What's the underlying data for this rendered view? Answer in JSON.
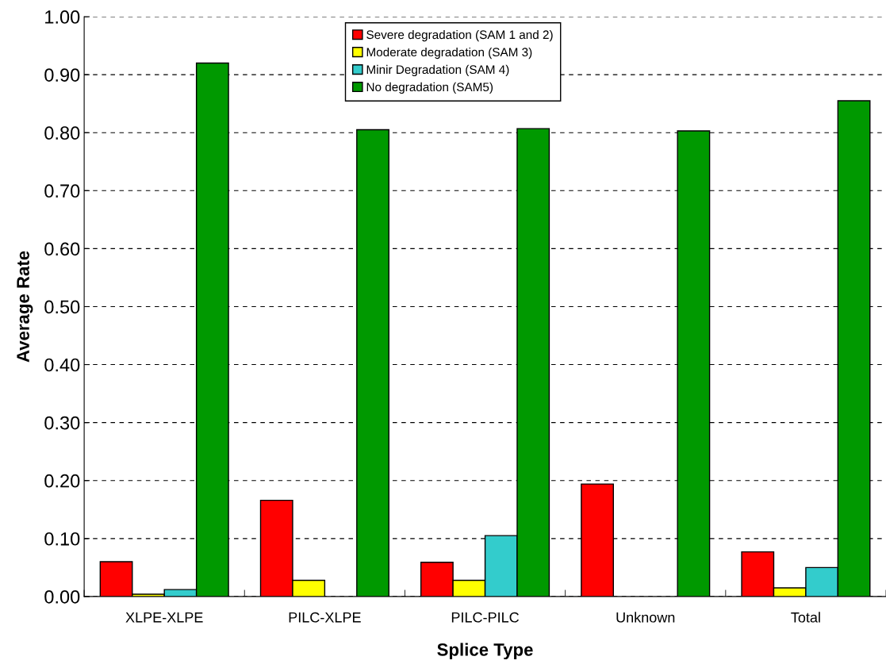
{
  "chart_data": {
    "type": "bar",
    "xlabel": "Splice Type",
    "ylabel": "Average Rate",
    "categories": [
      "XLPE-XLPE",
      "PILC-XLPE",
      "PILC-PILC",
      "Unknown",
      "Total"
    ],
    "series": [
      {
        "name": "Severe degradation (SAM 1 and 2)",
        "color": "#ff0000",
        "values": [
          0.06,
          0.166,
          0.059,
          0.194,
          0.077
        ]
      },
      {
        "name": "Moderate degradation (SAM 3)",
        "color": "#ffff00",
        "values": [
          0.004,
          0.028,
          0.028,
          null,
          0.015
        ]
      },
      {
        "name": "Minir Degradation (SAM 4)",
        "color": "#33cccc",
        "values": [
          0.012,
          null,
          0.105,
          null,
          0.05
        ]
      },
      {
        "name": "No degradation (SAM5)",
        "color": "#009900",
        "values": [
          0.92,
          0.805,
          0.807,
          0.803,
          0.855
        ]
      }
    ],
    "ylim": [
      0,
      1.0
    ],
    "yticks": [
      {
        "value": 0,
        "label": "0.00"
      },
      {
        "value": 0.1,
        "label": "0.10"
      },
      {
        "value": 0.2,
        "label": "0.20"
      },
      {
        "value": 0.3,
        "label": "0.30"
      },
      {
        "value": 0.4,
        "label": "0.40"
      },
      {
        "value": 0.5,
        "label": "0.50"
      },
      {
        "value": 0.6,
        "label": "0.60"
      },
      {
        "value": 0.7,
        "label": "0.70"
      },
      {
        "value": 0.8,
        "label": "0.80"
      },
      {
        "value": 0.9,
        "label": "0.90"
      },
      {
        "value": 1.0,
        "label": "1.00"
      }
    ],
    "grid": "y",
    "legend": "top center"
  }
}
